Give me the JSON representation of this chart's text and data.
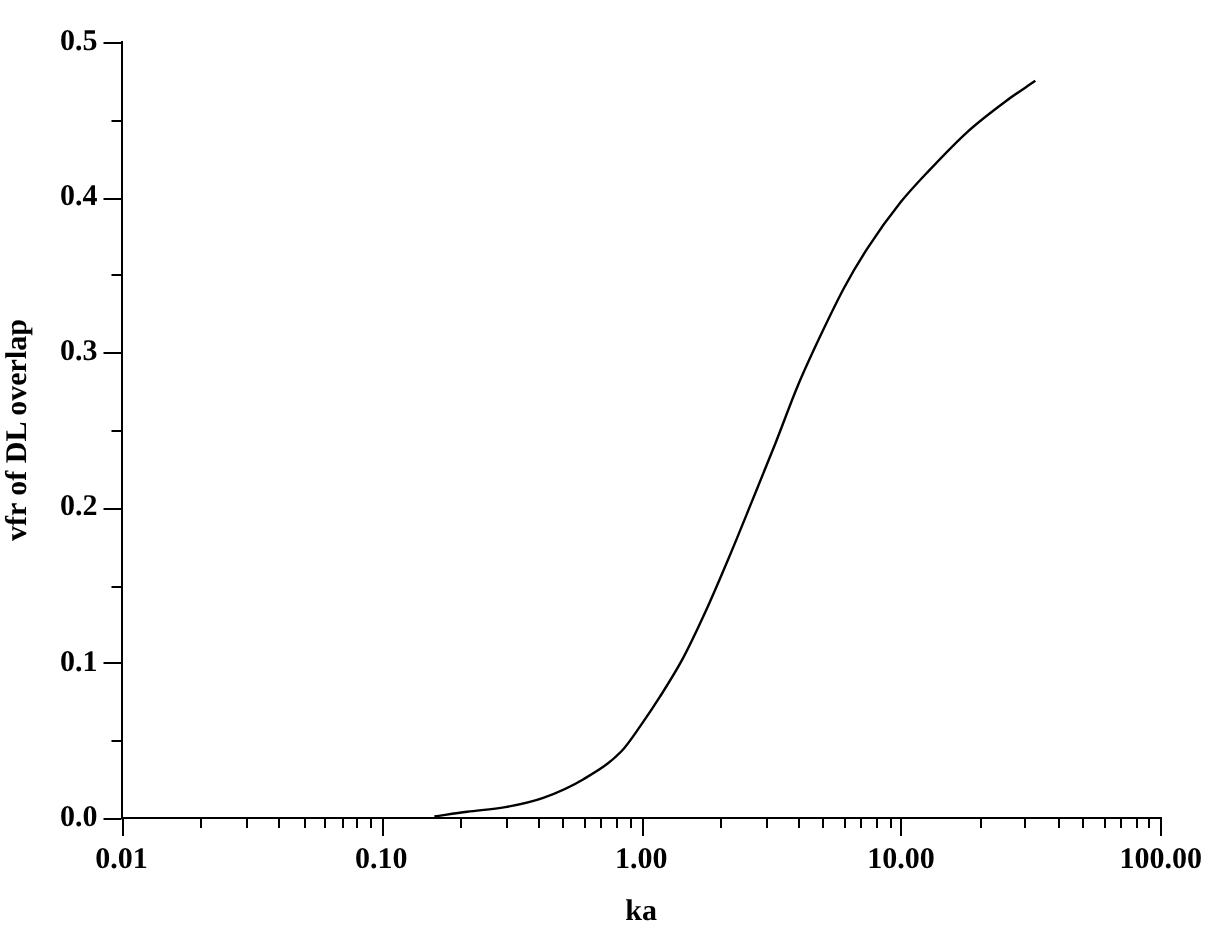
{
  "chart_data": {
    "type": "line",
    "xlabel": "ka",
    "ylabel": "vfr of DL overlap",
    "log": "x",
    "grid": false,
    "legend": false,
    "marker": "none",
    "line_style": "solid",
    "xlim": [
      0.01,
      100
    ],
    "xticks": [
      0.01,
      {
        "value": 0.02,
        "label": null
      },
      {
        "value": 0.03,
        "label": null
      },
      {
        "value": 0.04,
        "label": null
      },
      {
        "value": 0.05,
        "label": null
      },
      {
        "value": 0.06,
        "label": null
      },
      {
        "value": 0.07,
        "label": null
      },
      {
        "value": 0.08,
        "label": null
      },
      {
        "value": 0.09,
        "label": null
      },
      {
        "value": 0.1,
        "label": "0.10"
      },
      {
        "value": 0.2,
        "label": null
      },
      {
        "value": 0.3,
        "label": null
      },
      {
        "value": 0.4,
        "label": null
      },
      {
        "value": 0.5,
        "label": null
      },
      {
        "value": 0.6,
        "label": null
      },
      {
        "value": 0.7,
        "label": null
      },
      {
        "value": 0.8,
        "label": null
      },
      {
        "value": 0.9,
        "label": null
      },
      {
        "value": 1,
        "label": "1.00"
      },
      {
        "value": 2,
        "label": null
      },
      {
        "value": 3,
        "label": null
      },
      {
        "value": 4,
        "label": null
      },
      {
        "value": 5,
        "label": null
      },
      {
        "value": 6,
        "label": null
      },
      {
        "value": 7,
        "label": null
      },
      {
        "value": 8,
        "label": null
      },
      {
        "value": 9,
        "label": null
      },
      {
        "value": 10,
        "label": "10.00"
      },
      {
        "value": 20,
        "label": null
      },
      {
        "value": 30,
        "label": null
      },
      {
        "value": 40,
        "label": null
      },
      {
        "value": 50,
        "label": null
      },
      {
        "value": 60,
        "label": null
      },
      {
        "value": 70,
        "label": null
      },
      {
        "value": 80,
        "label": null
      },
      {
        "value": 90,
        "label": null
      },
      {
        "value": 100,
        "label": "100.00"
      }
    ],
    "ylim": [
      0,
      0.5
    ],
    "yticks": [
      {
        "value": 0,
        "label": "0.0"
      },
      {
        "value": 0.05,
        "label": null
      },
      {
        "value": 0.1,
        "label": "0.1"
      },
      {
        "value": 0.15,
        "label": null
      },
      {
        "value": 0.2,
        "label": "0.2"
      },
      {
        "value": 0.25,
        "label": null
      },
      {
        "value": 0.3,
        "label": "0.3"
      },
      {
        "value": 0.35,
        "label": null
      },
      {
        "value": 0.4,
        "label": "0.4"
      },
      {
        "value": 0.45,
        "label": null
      },
      {
        "value": 0.5,
        "label": "0.5"
      }
    ],
    "series": [
      {
        "color": "#000000",
        "x": [
          0.16,
          0.214,
          0.3,
          0.42,
          0.6,
          0.84,
          1,
          1.18,
          1.45,
          1.77,
          2.18,
          2.67,
          3.28,
          4.02,
          4.94,
          6.06,
          7.43,
          10,
          12.8,
          18,
          25.4,
          32.9
        ],
        "values": [
          0.001,
          0.004,
          0.007,
          0.013,
          0.025,
          0.043,
          0.06,
          0.078,
          0.103,
          0.133,
          0.168,
          0.204,
          0.241,
          0.279,
          0.312,
          0.342,
          0.367,
          0.397,
          0.417,
          0.442,
          0.462,
          0.475
        ]
      }
    ]
  }
}
